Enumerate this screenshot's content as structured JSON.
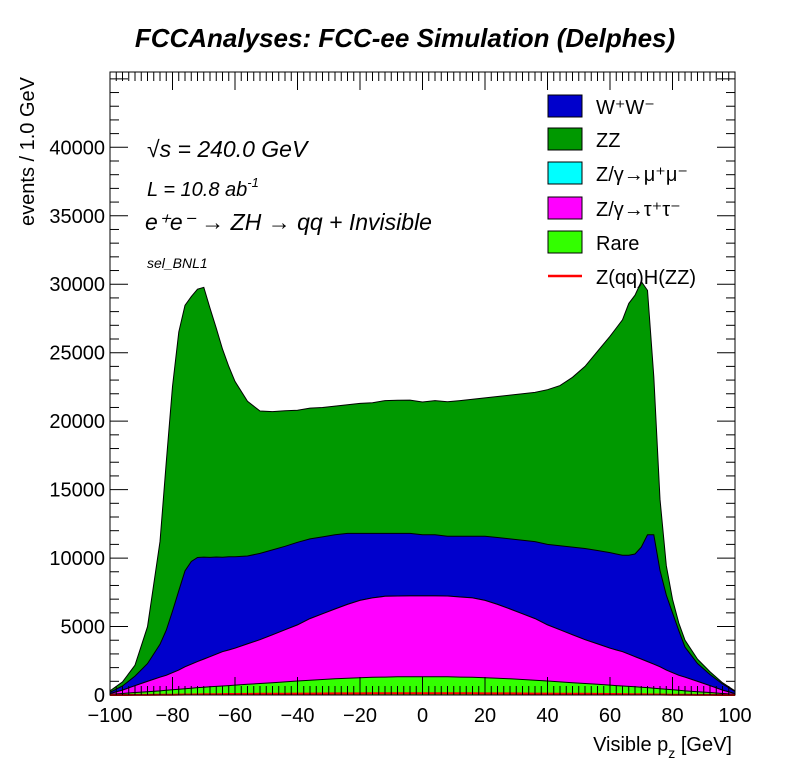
{
  "chart_data": {
    "type": "area",
    "title": "FCCAnalyses: FCC-ee Simulation (Delphes)",
    "xlabel_main": "Visible p",
    "xlabel_sub": "z",
    "xlabel_unit": " [GeV]",
    "ylabel": "events / 1.0 GeV",
    "xlim": [
      -100,
      100
    ],
    "ylim": [
      0,
      45500
    ],
    "x_ticks": [
      -100,
      -80,
      -60,
      -40,
      -20,
      0,
      20,
      40,
      60,
      80,
      100
    ],
    "x_tick_labels": [
      "−100",
      "−80",
      "−60",
      "−40",
      "−20",
      "0",
      "20",
      "40",
      "60",
      "80",
      "100"
    ],
    "y_ticks": [
      0,
      5000,
      10000,
      15000,
      20000,
      25000,
      30000,
      35000,
      40000
    ],
    "y_tick_labels": [
      "0",
      "5000",
      "10000",
      "15000",
      "20000",
      "25000",
      "30000",
      "35000",
      "40000"
    ],
    "stacked": true,
    "x": [
      -100,
      -96,
      -92,
      -88,
      -84,
      -82,
      -80,
      -78,
      -76,
      -74,
      -72,
      -70,
      -68,
      -66,
      -64,
      -62,
      -60,
      -56,
      -52,
      -48,
      -44,
      -40,
      -36,
      -32,
      -28,
      -24,
      -20,
      -16,
      -12,
      -8,
      -4,
      0,
      4,
      8,
      12,
      16,
      20,
      24,
      28,
      32,
      36,
      40,
      44,
      48,
      52,
      56,
      60,
      62,
      64,
      66,
      68,
      70,
      72,
      74,
      76,
      78,
      80,
      82,
      84,
      88,
      92,
      96,
      100
    ],
    "series": [
      {
        "name": "Rare",
        "color": "#33ff00",
        "values": [
          50,
          110,
          180,
          240,
          300,
          340,
          380,
          420,
          460,
          500,
          540,
          570,
          600,
          630,
          660,
          690,
          720,
          780,
          840,
          900,
          960,
          1020,
          1080,
          1130,
          1180,
          1220,
          1260,
          1290,
          1310,
          1330,
          1340,
          1340,
          1340,
          1330,
          1310,
          1290,
          1260,
          1220,
          1180,
          1130,
          1080,
          1020,
          960,
          900,
          840,
          780,
          720,
          690,
          660,
          630,
          600,
          570,
          540,
          500,
          460,
          420,
          380,
          340,
          300,
          240,
          180,
          110,
          50
        ]
      },
      {
        "name": "Z/γ→τ⁺τ⁻",
        "color": "#ff00ff",
        "values": [
          50,
          250,
          500,
          750,
          1000,
          1100,
          1250,
          1400,
          1600,
          1750,
          1900,
          2050,
          2200,
          2350,
          2500,
          2600,
          2700,
          2950,
          3200,
          3500,
          3800,
          4100,
          4500,
          4800,
          5100,
          5400,
          5650,
          5800,
          5900,
          5900,
          5900,
          5900,
          5900,
          5900,
          5850,
          5800,
          5650,
          5400,
          5100,
          4800,
          4500,
          4100,
          3800,
          3500,
          3200,
          2950,
          2700,
          2600,
          2500,
          2350,
          2200,
          2050,
          1900,
          1750,
          1600,
          1400,
          1250,
          1100,
          1000,
          750,
          500,
          250,
          50
        ]
      },
      {
        "name": "Z/γ→μ⁺μ⁻",
        "color": "#00ffff",
        "values": [
          0,
          0,
          0,
          0,
          0,
          0,
          0,
          0,
          0,
          0,
          0,
          0,
          0,
          0,
          0,
          0,
          0,
          0,
          0,
          0,
          0,
          0,
          0,
          0,
          0,
          0,
          0,
          0,
          0,
          0,
          0,
          0,
          0,
          0,
          0,
          0,
          0,
          0,
          0,
          0,
          0,
          0,
          0,
          0,
          0,
          0,
          0,
          0,
          0,
          0,
          0,
          0,
          0,
          0,
          0,
          0,
          0,
          0,
          0,
          0,
          0,
          0,
          0
        ]
      },
      {
        "name": "W⁺W⁻",
        "color": "#0000cc",
        "values": [
          100,
          300,
          700,
          1300,
          2400,
          3300,
          4500,
          5800,
          7000,
          7500,
          7600,
          7450,
          7250,
          7100,
          6900,
          6800,
          6680,
          6420,
          6300,
          6200,
          6100,
          6030,
          5820,
          5620,
          5420,
          5180,
          4890,
          4710,
          4590,
          4570,
          4560,
          4460,
          4460,
          4370,
          4440,
          4510,
          4690,
          4880,
          5120,
          5370,
          5620,
          5880,
          6140,
          6400,
          6660,
          6820,
          6980,
          7010,
          7040,
          7220,
          7500,
          8180,
          9260,
          9450,
          7040,
          5480,
          4370,
          3260,
          2200,
          1310,
          820,
          440,
          150
        ]
      },
      {
        "name": "ZZ",
        "color": "#009900",
        "values": [
          100,
          300,
          800,
          2700,
          7500,
          12300,
          16400,
          18900,
          19400,
          19350,
          19600,
          19700,
          18200,
          16700,
          15200,
          13900,
          12800,
          11300,
          10400,
          10100,
          9900,
          9650,
          9550,
          9450,
          9400,
          9400,
          9500,
          9550,
          9700,
          9720,
          9740,
          9700,
          9800,
          9810,
          9900,
          10000,
          10100,
          10300,
          10500,
          10700,
          10900,
          11300,
          11700,
          12400,
          13300,
          14550,
          15800,
          16500,
          17200,
          18400,
          18900,
          19400,
          17850,
          11550,
          5200,
          2150,
          1000,
          560,
          500,
          320,
          200,
          100,
          50
        ]
      }
    ],
    "signal": {
      "name": "Z(qq)H(ZZ)",
      "color": "#ff0000",
      "values": [
        0,
        2,
        5,
        10,
        15,
        20,
        25,
        30,
        35,
        40,
        45,
        50,
        55,
        60,
        65,
        70,
        75,
        80,
        85,
        90,
        95,
        100,
        105,
        110,
        115,
        118,
        120,
        122,
        124,
        125,
        125,
        125,
        125,
        125,
        124,
        122,
        120,
        118,
        115,
        110,
        105,
        100,
        95,
        90,
        85,
        80,
        75,
        70,
        65,
        60,
        55,
        50,
        45,
        40,
        35,
        30,
        25,
        20,
        15,
        10,
        5,
        2,
        0
      ]
    },
    "legend_position": "top-right",
    "legend_order": [
      "W⁺W⁻",
      "ZZ",
      "Z/γ→μ⁺μ⁻",
      "Z/γ→τ⁺τ⁻",
      "Rare",
      "Z(qq)H(ZZ)"
    ],
    "annotations": {
      "sqrt_s_symbol": "√s",
      "sqrt_s_value": " = 240.0 GeV",
      "lumi_main": "L = 10.8 ab",
      "lumi_exp": "-1",
      "process": "e⁺e⁻ → ZH → qq + Invisible",
      "selection": "sel_BNL1"
    },
    "grid": false
  }
}
